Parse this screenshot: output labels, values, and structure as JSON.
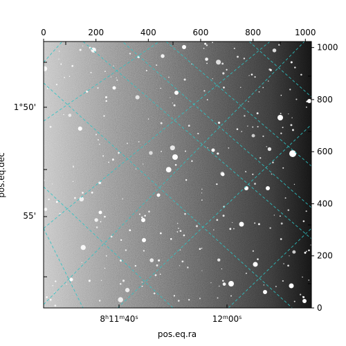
{
  "chart_data": {
    "type": "image",
    "pixel_axes": {
      "x_ticks": [
        0,
        200,
        400,
        600,
        800,
        1000
      ],
      "x_tick_labels": [
        "0",
        "200",
        "400",
        "600",
        "800",
        "1000"
      ],
      "y_ticks": [
        0,
        200,
        400,
        600,
        800,
        1000
      ],
      "y_tick_labels": [
        "0",
        "200",
        "400",
        "600",
        "800",
        "1000"
      ],
      "xlim": [
        0,
        1023
      ],
      "ylim": [
        0,
        1023
      ]
    },
    "world_axes": {
      "xlabel": "pos.eq.ra",
      "ylabel": "pos.eq.dec",
      "ra_tick_labels": [
        {
          "h": "8",
          "m": "11",
          "s": "40",
          "show_hm": true
        },
        {
          "h": "",
          "m": "12",
          "s": "00",
          "show_hm": false
        }
      ],
      "dec_tick_labels": [
        "1°50'",
        "55'"
      ]
    },
    "grid": {
      "on": true,
      "color": "#2ec4c4",
      "style": "dashed"
    },
    "image": {
      "colormap": "gray",
      "description_free": true
    }
  }
}
